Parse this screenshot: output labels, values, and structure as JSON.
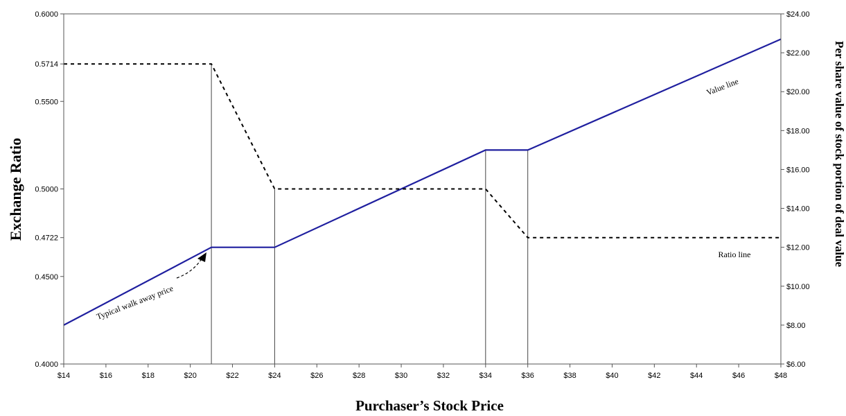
{
  "chart_data": {
    "type": "line",
    "xlabel": "Purchaser’s Stock Price",
    "ylabel_left": "Exchange Ratio",
    "ylabel_right": "Per share value of stock portion of deal value",
    "x_ticks": [
      "$14",
      "$16",
      "$18",
      "$20",
      "$22",
      "$24",
      "$26",
      "$28",
      "$30",
      "$32",
      "$34",
      "$36",
      "$38",
      "$40",
      "$42",
      "$44",
      "$46",
      "$48"
    ],
    "xlim": [
      14,
      48
    ],
    "left_ticks": [
      "0.4000",
      "0.4500",
      "0.4722",
      "0.5000",
      "0.5500",
      "0.5714",
      "0.6000"
    ],
    "left_tick_values": [
      0.4,
      0.45,
      0.4722,
      0.5,
      0.55,
      0.5714,
      0.6
    ],
    "ylim_left": [
      0.4,
      0.6
    ],
    "right_ticks": [
      "$6.00",
      "$8.00",
      "$10.00",
      "$12.00",
      "$14.00",
      "$16.00",
      "$18.00",
      "$20.00",
      "$22.00",
      "$24.00"
    ],
    "right_tick_values": [
      6,
      8,
      10,
      12,
      14,
      16,
      18,
      20,
      22,
      24
    ],
    "ylim_right": [
      6,
      24
    ],
    "series": [
      {
        "name": "Value line",
        "axis": "right",
        "color": "#1f1f9f",
        "style": "solid",
        "points": [
          [
            14,
            8.0
          ],
          [
            21,
            12.0
          ],
          [
            24,
            12.0
          ],
          [
            34,
            17.0
          ],
          [
            36,
            17.0
          ],
          [
            48,
            22.7
          ]
        ]
      },
      {
        "name": "Ratio line",
        "axis": "left",
        "color": "#000000",
        "style": "dashed",
        "points": [
          [
            14,
            0.5714
          ],
          [
            21,
            0.5714
          ],
          [
            24,
            0.5
          ],
          [
            34,
            0.5
          ],
          [
            36,
            0.4722
          ],
          [
            48,
            0.4722
          ]
        ]
      }
    ],
    "reference_lines_x": [
      21,
      24,
      34,
      36
    ],
    "annotations": {
      "value_line": "Value line",
      "ratio_line": "Ratio line",
      "walk_away": "Typical walk away price"
    }
  }
}
